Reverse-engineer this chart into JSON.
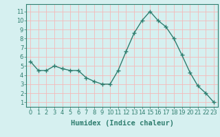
{
  "x": [
    0,
    1,
    2,
    3,
    4,
    5,
    6,
    7,
    8,
    9,
    10,
    11,
    12,
    13,
    14,
    15,
    16,
    17,
    18,
    19,
    20,
    21,
    22,
    23
  ],
  "y": [
    5.5,
    4.5,
    4.5,
    5.0,
    4.7,
    4.5,
    4.5,
    3.7,
    3.3,
    3.0,
    3.0,
    4.5,
    6.6,
    8.6,
    10.0,
    11.0,
    10.0,
    9.3,
    8.0,
    6.2,
    4.3,
    2.8,
    2.0,
    1.0
  ],
  "line_color": "#2e7d6e",
  "marker": "+",
  "marker_size": 4,
  "xlabel": "Humidex (Indice chaleur)",
  "xlabel_fontsize": 7.5,
  "ylabel_ticks": [
    1,
    2,
    3,
    4,
    5,
    6,
    7,
    8,
    9,
    10,
    11
  ],
  "xticks": [
    0,
    1,
    2,
    3,
    4,
    5,
    6,
    7,
    8,
    9,
    10,
    11,
    12,
    13,
    14,
    15,
    16,
    17,
    18,
    19,
    20,
    21,
    22,
    23
  ],
  "ylim": [
    0.5,
    11.8
  ],
  "xlim": [
    -0.5,
    23.5
  ],
  "bg_color": "#d6f0f0",
  "grid_color": "#f5b8b8",
  "tick_color": "#2e7d6e",
  "spine_color": "#2e7d6e",
  "tick_fontsize": 6.0,
  "linewidth": 1.0,
  "markeredgewidth": 1.0
}
